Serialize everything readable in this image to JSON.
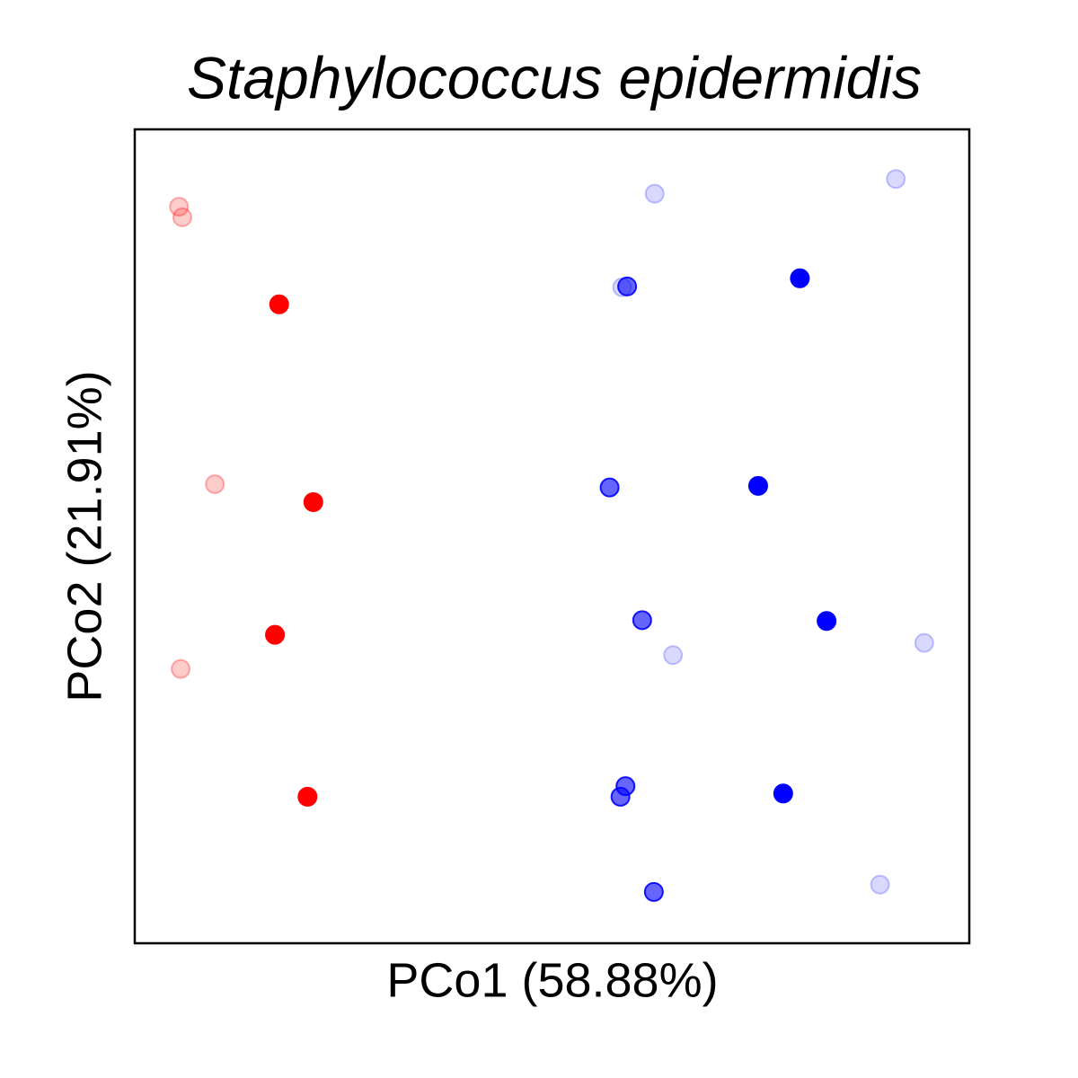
{
  "chart_data": {
    "type": "scatter",
    "title": "Staphylococcus epidermidis",
    "x_label": "PCo1 (58.88%)",
    "y_label": "PCo2 (21.91%)",
    "xlim": [
      0,
      1
    ],
    "ylim": [
      0,
      1
    ],
    "series": [
      {
        "color": "#ff0000",
        "alpha": 1,
        "x": [
          0.173,
          0.214,
          0.168,
          0.207
        ],
        "values": [
          0.785,
          0.542,
          0.379,
          0.18
        ]
      },
      {
        "color": "#ff0000",
        "alpha": 0.2,
        "x": [
          0.053,
          0.057,
          0.096,
          0.055
        ],
        "values": [
          0.905,
          0.892,
          0.564,
          0.337
        ]
      },
      {
        "color": "#0000ff",
        "alpha": 1,
        "x": [
          0.797,
          0.747,
          0.829,
          0.777
        ],
        "values": [
          0.817,
          0.562,
          0.396,
          0.184
        ]
      },
      {
        "color": "#0000ff",
        "alpha": 0.6,
        "x": [
          0.59,
          0.569,
          0.608,
          0.588,
          0.582,
          0.622
        ],
        "values": [
          0.807,
          0.56,
          0.397,
          0.193,
          0.18,
          0.063
        ]
      },
      {
        "color": "#0000ff",
        "alpha": 0.15,
        "x": [
          0.623,
          0.912,
          0.645,
          0.946,
          0.893,
          0.584
        ],
        "values": [
          0.921,
          0.939,
          0.354,
          0.369,
          0.072,
          0.806
        ]
      }
    ]
  }
}
